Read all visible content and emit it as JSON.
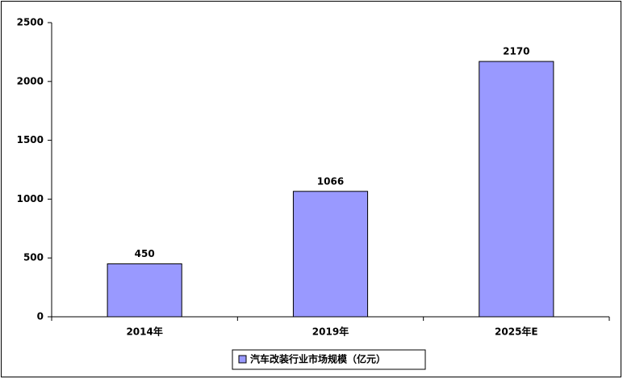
{
  "chart_data": {
    "type": "bar",
    "categories": [
      "2014年",
      "2019年",
      "2025年E"
    ],
    "series": [
      {
        "name": "汽车改装行业市场规模（亿元）",
        "color": "#9999ff",
        "values": [
          450,
          1066,
          2170
        ]
      }
    ],
    "ylim": [
      0,
      2500
    ],
    "yticks": [
      0,
      500,
      1000,
      1500,
      2000,
      2500
    ],
    "grid": false,
    "legend": "bottom",
    "data_labels": true
  }
}
